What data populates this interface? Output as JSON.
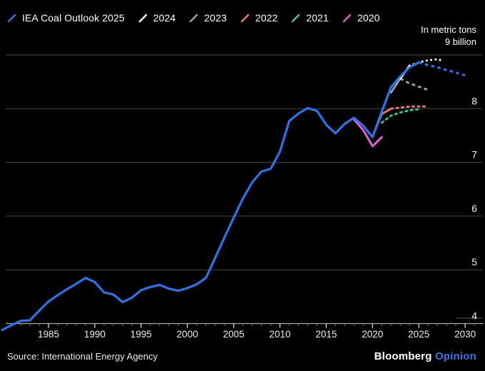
{
  "legend": {
    "items": [
      {
        "label": "IEA Coal Outlook 2025",
        "color": "#2b73e8"
      },
      {
        "label": "2024",
        "color": "#ffffff"
      },
      {
        "label": "2023",
        "color": "#9ba1a6"
      },
      {
        "label": "2022",
        "color": "#e8796b"
      },
      {
        "label": "2021",
        "color": "#3ec29c"
      },
      {
        "label": "2020",
        "color": "#e05ed3"
      }
    ]
  },
  "axis_note": {
    "line1": "In metric tons",
    "line2": "9 billion"
  },
  "footer": {
    "source": "Source: International Energy Agency",
    "brand": "Bloomberg",
    "brand_suffix": "Opinion",
    "brand_suffix_color": "#3575e0"
  },
  "chart_data": {
    "type": "line",
    "unit_note": "In metric tons, billions",
    "grid": true,
    "x_axis": {
      "range": [
        1980,
        2031
      ],
      "ticks_labeled": [
        1985,
        1990,
        1995,
        2000,
        2005,
        2010,
        2015,
        2020,
        2025,
        2030
      ],
      "minor_tick_every_years": 1
    },
    "y_axis": {
      "side": "right",
      "top_label": "9 billion",
      "ticks": [
        9,
        8,
        7,
        6,
        5,
        4
      ],
      "labels_drawn": [
        8,
        7,
        6,
        5,
        4
      ],
      "range": [
        3.8,
        9.2
      ]
    },
    "series": [
      {
        "name": "IEA Coal Outlook 2025",
        "color": "#2b73e8",
        "solid": [
          [
            1980,
            3.88
          ],
          [
            1981,
            3.97
          ],
          [
            1982,
            4.05
          ],
          [
            1983,
            4.06
          ],
          [
            1984,
            4.24
          ],
          [
            1985,
            4.41
          ],
          [
            1986,
            4.53
          ],
          [
            1987,
            4.64
          ],
          [
            1988,
            4.74
          ],
          [
            1989,
            4.85
          ],
          [
            1990,
            4.77
          ],
          [
            1991,
            4.58
          ],
          [
            1992,
            4.54
          ],
          [
            1993,
            4.4
          ],
          [
            1994,
            4.48
          ],
          [
            1995,
            4.62
          ],
          [
            1996,
            4.68
          ],
          [
            1997,
            4.72
          ],
          [
            1998,
            4.65
          ],
          [
            1999,
            4.61
          ],
          [
            2000,
            4.66
          ],
          [
            2001,
            4.73
          ],
          [
            2002,
            4.85
          ],
          [
            2003,
            5.22
          ],
          [
            2004,
            5.6
          ],
          [
            2005,
            5.97
          ],
          [
            2006,
            6.33
          ],
          [
            2007,
            6.63
          ],
          [
            2008,
            6.83
          ],
          [
            2009,
            6.88
          ],
          [
            2010,
            7.2
          ],
          [
            2011,
            7.77
          ],
          [
            2012,
            7.91
          ],
          [
            2013,
            8.01
          ],
          [
            2014,
            7.96
          ],
          [
            2015,
            7.7
          ],
          [
            2016,
            7.54
          ],
          [
            2017,
            7.72
          ],
          [
            2018,
            7.83
          ],
          [
            2019,
            7.68
          ],
          [
            2020,
            7.47
          ],
          [
            2021,
            7.95
          ],
          [
            2022,
            8.4
          ],
          [
            2023,
            8.6
          ],
          [
            2024,
            8.77
          ],
          [
            2025,
            8.86
          ]
        ],
        "dashed": [
          [
            2025,
            8.86
          ],
          [
            2026,
            8.81
          ],
          [
            2027,
            8.77
          ],
          [
            2028,
            8.72
          ],
          [
            2029,
            8.67
          ],
          [
            2030,
            8.62
          ]
        ]
      },
      {
        "name": "2024",
        "color": "#ffffff",
        "solid": [
          [
            2023,
            8.56
          ],
          [
            2024,
            8.8
          ]
        ],
        "dashed": [
          [
            2024,
            8.8
          ],
          [
            2025,
            8.86
          ],
          [
            2026,
            8.9
          ],
          [
            2027,
            8.92
          ],
          [
            2027.4,
            8.9
          ]
        ]
      },
      {
        "name": "2023",
        "color": "#9ba1a6",
        "solid": [
          [
            2022,
            8.3
          ],
          [
            2023,
            8.56
          ]
        ],
        "dashed": [
          [
            2023,
            8.56
          ],
          [
            2024,
            8.47
          ],
          [
            2025,
            8.41
          ],
          [
            2026,
            8.35
          ]
        ]
      },
      {
        "name": "2022",
        "color": "#e8796b",
        "solid": [
          [
            2020,
            7.48
          ],
          [
            2021,
            7.9
          ],
          [
            2022,
            8.0
          ]
        ],
        "dashed": [
          [
            2022,
            8.0
          ],
          [
            2023,
            8.02
          ],
          [
            2024,
            8.04
          ],
          [
            2025,
            8.04
          ],
          [
            2025.8,
            8.04
          ]
        ]
      },
      {
        "name": "2021",
        "color": "#3ec29c",
        "solid": [],
        "dashed": [
          [
            2021,
            7.74
          ],
          [
            2022,
            7.87
          ],
          [
            2023,
            7.93
          ],
          [
            2024,
            7.97
          ],
          [
            2025,
            7.99
          ]
        ]
      },
      {
        "name": "2020",
        "color": "#e05ed3",
        "solid": [
          [
            2018,
            7.8
          ],
          [
            2019,
            7.6
          ],
          [
            2020,
            7.3
          ],
          [
            2021,
            7.47
          ]
        ],
        "dashed": []
      }
    ]
  }
}
